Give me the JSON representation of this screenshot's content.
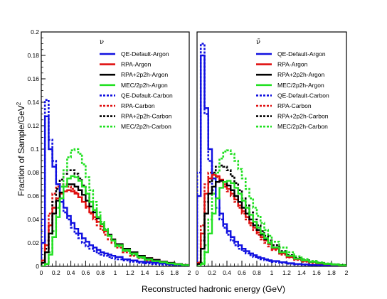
{
  "chart_data": [
    {
      "type": "line",
      "panel_label": "ν",
      "xlabel": "Reconstructed hadronic energy  (GeV)",
      "ylabel": "Fraction of Sample/GeV",
      "ylabel_sup": "2",
      "xlim": [
        0,
        2
      ],
      "ylim": [
        0,
        0.2
      ],
      "x_ticks": [
        "0",
        "0.2",
        "0.4",
        "0.6",
        "0.8",
        "1",
        "1.2",
        "1.4",
        "1.6",
        "1.8",
        "2"
      ],
      "y_ticks": [
        "0",
        "0.02",
        "0.04",
        "0.06",
        "0.08",
        "0.1",
        "0.12",
        "0.14",
        "0.16",
        "0.18",
        "0.2"
      ],
      "bin_edges": [
        0,
        0.05,
        0.1,
        0.15,
        0.2,
        0.25,
        0.3,
        0.35,
        0.4,
        0.45,
        0.5,
        0.55,
        0.6,
        0.65,
        0.7,
        0.75,
        0.8,
        0.85,
        0.9,
        0.95,
        1.0,
        1.1,
        1.2,
        1.3,
        1.4,
        1.5,
        1.6,
        1.7,
        1.8,
        1.9,
        2.0
      ],
      "series": [
        {
          "name": "QE-Default-Argon",
          "color": "#1010e0",
          "style": "solid",
          "values": [
            0.02,
            0.128,
            0.1,
            0.085,
            0.07,
            0.058,
            0.05,
            0.043,
            0.037,
            0.032,
            0.028,
            0.024,
            0.021,
            0.018,
            0.016,
            0.014,
            0.012,
            0.011,
            0.01,
            0.009,
            0.008,
            0.006,
            0.005,
            0.004,
            0.0035,
            0.003,
            0.0025,
            0.002,
            0.0015,
            0.001
          ]
        },
        {
          "name": "RPA-Argon",
          "color": "#e01010",
          "style": "solid",
          "values": [
            0.005,
            0.018,
            0.035,
            0.05,
            0.058,
            0.062,
            0.064,
            0.065,
            0.064,
            0.062,
            0.059,
            0.055,
            0.051,
            0.046,
            0.042,
            0.038,
            0.034,
            0.03,
            0.026,
            0.023,
            0.019,
            0.015,
            0.012,
            0.009,
            0.007,
            0.0055,
            0.004,
            0.003,
            0.002,
            0.0012
          ]
        },
        {
          "name": "RPA+2p2h-Argon",
          "color": "#000000",
          "style": "solid",
          "values": [
            0.003,
            0.012,
            0.028,
            0.045,
            0.056,
            0.063,
            0.068,
            0.07,
            0.07,
            0.068,
            0.065,
            0.061,
            0.056,
            0.051,
            0.046,
            0.041,
            0.036,
            0.031,
            0.027,
            0.023,
            0.019,
            0.015,
            0.012,
            0.009,
            0.007,
            0.0055,
            0.004,
            0.003,
            0.002,
            0.0012
          ]
        },
        {
          "name": "MEC/2p2h-Argon",
          "color": "#22e022",
          "style": "solid",
          "values": [
            0.0,
            0.002,
            0.01,
            0.025,
            0.042,
            0.058,
            0.068,
            0.075,
            0.077,
            0.076,
            0.073,
            0.068,
            0.062,
            0.055,
            0.048,
            0.042,
            0.036,
            0.031,
            0.026,
            0.022,
            0.018,
            0.014,
            0.011,
            0.008,
            0.006,
            0.0045,
            0.0035,
            0.0025,
            0.0018,
            0.001
          ]
        },
        {
          "name": "QE-Default-Carbon",
          "color": "#1010e0",
          "style": "dashed",
          "values": [
            0.04,
            0.142,
            0.108,
            0.09,
            0.07,
            0.055,
            0.046,
            0.04,
            0.033,
            0.028,
            0.024,
            0.02,
            0.017,
            0.015,
            0.013,
            0.011,
            0.01,
            0.009,
            0.008,
            0.007,
            0.006,
            0.005,
            0.004,
            0.003,
            0.0025,
            0.002,
            0.0015,
            0.0012,
            0.001,
            0.0008
          ]
        },
        {
          "name": "RPA-Carbon",
          "color": "#e01010",
          "style": "dashed",
          "values": [
            0.005,
            0.022,
            0.045,
            0.062,
            0.068,
            0.07,
            0.07,
            0.068,
            0.066,
            0.063,
            0.059,
            0.055,
            0.05,
            0.045,
            0.04,
            0.035,
            0.031,
            0.027,
            0.023,
            0.02,
            0.016,
            0.012,
            0.009,
            0.007,
            0.005,
            0.004,
            0.003,
            0.002,
            0.0015,
            0.001
          ]
        },
        {
          "name": "RPA+2p2h-Carbon",
          "color": "#000000",
          "style": "dashed",
          "values": [
            0.003,
            0.015,
            0.035,
            0.055,
            0.066,
            0.074,
            0.079,
            0.082,
            0.082,
            0.079,
            0.075,
            0.069,
            0.062,
            0.055,
            0.048,
            0.042,
            0.036,
            0.031,
            0.026,
            0.022,
            0.018,
            0.014,
            0.01,
            0.008,
            0.006,
            0.0045,
            0.0035,
            0.0025,
            0.0018,
            0.001
          ]
        },
        {
          "name": "MEC/2p2h-Carbon",
          "color": "#22e022",
          "style": "dashed",
          "values": [
            0.0,
            0.002,
            0.012,
            0.03,
            0.05,
            0.068,
            0.082,
            0.093,
            0.099,
            0.1,
            0.096,
            0.087,
            0.076,
            0.065,
            0.055,
            0.046,
            0.038,
            0.032,
            0.026,
            0.022,
            0.017,
            0.013,
            0.01,
            0.007,
            0.0055,
            0.004,
            0.003,
            0.002,
            0.0015,
            0.001
          ]
        }
      ]
    },
    {
      "type": "line",
      "panel_label": "ν̄",
      "xlim": [
        0,
        2
      ],
      "ylim": [
        0,
        0.2
      ],
      "x_ticks": [
        "0",
        "0.2",
        "0.4",
        "0.6",
        "0.8",
        "1",
        "1.2",
        "1.4",
        "1.6",
        "1.8",
        "2"
      ],
      "bin_edges": [
        0,
        0.05,
        0.1,
        0.15,
        0.2,
        0.25,
        0.3,
        0.35,
        0.4,
        0.45,
        0.5,
        0.55,
        0.6,
        0.65,
        0.7,
        0.75,
        0.8,
        0.85,
        0.9,
        0.95,
        1.0,
        1.1,
        1.2,
        1.3,
        1.4,
        1.5,
        1.6,
        1.7,
        1.8,
        1.9,
        2.0
      ],
      "series": [
        {
          "name": "QE-Default-Argon",
          "color": "#1010e0",
          "style": "solid",
          "values": [
            0.06,
            0.18,
            0.135,
            0.1,
            0.075,
            0.058,
            0.045,
            0.036,
            0.03,
            0.025,
            0.021,
            0.018,
            0.015,
            0.013,
            0.011,
            0.0095,
            0.008,
            0.007,
            0.006,
            0.0052,
            0.0045,
            0.0035,
            0.0027,
            0.002,
            0.0016,
            0.0012,
            0.001,
            0.0008,
            0.0006,
            0.0005
          ]
        },
        {
          "name": "RPA-Argon",
          "color": "#e01010",
          "style": "solid",
          "values": [
            0.003,
            0.028,
            0.062,
            0.075,
            0.078,
            0.077,
            0.074,
            0.07,
            0.066,
            0.062,
            0.057,
            0.052,
            0.047,
            0.042,
            0.037,
            0.033,
            0.029,
            0.025,
            0.022,
            0.019,
            0.015,
            0.011,
            0.008,
            0.006,
            0.0045,
            0.0035,
            0.0025,
            0.0018,
            0.0012,
            0.0008
          ]
        },
        {
          "name": "RPA+2p2h-Argon",
          "color": "#000000",
          "style": "solid",
          "values": [
            0.002,
            0.015,
            0.045,
            0.062,
            0.068,
            0.072,
            0.073,
            0.072,
            0.069,
            0.065,
            0.06,
            0.055,
            0.05,
            0.045,
            0.04,
            0.035,
            0.031,
            0.027,
            0.023,
            0.02,
            0.016,
            0.012,
            0.009,
            0.0065,
            0.005,
            0.0038,
            0.0028,
            0.002,
            0.0014,
            0.0009
          ]
        },
        {
          "name": "MEC/2p2h-Argon",
          "color": "#22e022",
          "style": "solid",
          "values": [
            0.0,
            0.002,
            0.012,
            0.028,
            0.045,
            0.058,
            0.067,
            0.072,
            0.073,
            0.071,
            0.067,
            0.062,
            0.056,
            0.05,
            0.044,
            0.038,
            0.033,
            0.028,
            0.024,
            0.02,
            0.016,
            0.012,
            0.009,
            0.0065,
            0.005,
            0.0038,
            0.0028,
            0.002,
            0.0014,
            0.0009
          ]
        },
        {
          "name": "QE-Default-Carbon",
          "color": "#1010e0",
          "style": "dashed",
          "values": [
            0.08,
            0.19,
            0.13,
            0.09,
            0.065,
            0.05,
            0.04,
            0.033,
            0.027,
            0.022,
            0.018,
            0.015,
            0.013,
            0.011,
            0.0095,
            0.008,
            0.007,
            0.006,
            0.0052,
            0.0045,
            0.0038,
            0.003,
            0.0023,
            0.0017,
            0.0013,
            0.001,
            0.0008,
            0.0006,
            0.0005,
            0.0004
          ]
        },
        {
          "name": "RPA-Carbon",
          "color": "#e01010",
          "style": "dashed",
          "values": [
            0.004,
            0.035,
            0.07,
            0.08,
            0.079,
            0.076,
            0.072,
            0.068,
            0.064,
            0.06,
            0.055,
            0.05,
            0.045,
            0.04,
            0.035,
            0.031,
            0.027,
            0.023,
            0.02,
            0.017,
            0.014,
            0.01,
            0.0075,
            0.0055,
            0.004,
            0.003,
            0.0022,
            0.0016,
            0.0011,
            0.0007
          ]
        },
        {
          "name": "RPA+2p2h-Carbon",
          "color": "#000000",
          "style": "dashed",
          "values": [
            0.003,
            0.022,
            0.055,
            0.072,
            0.08,
            0.085,
            0.086,
            0.085,
            0.082,
            0.077,
            0.071,
            0.065,
            0.058,
            0.052,
            0.046,
            0.04,
            0.035,
            0.03,
            0.026,
            0.022,
            0.018,
            0.013,
            0.0095,
            0.007,
            0.0052,
            0.0039,
            0.0029,
            0.0021,
            0.0015,
            0.001
          ]
        },
        {
          "name": "MEC/2p2h-Carbon",
          "color": "#22e022",
          "style": "dashed",
          "values": [
            0.0,
            0.003,
            0.018,
            0.04,
            0.062,
            0.08,
            0.092,
            0.098,
            0.099,
            0.096,
            0.09,
            0.083,
            0.075,
            0.066,
            0.058,
            0.05,
            0.043,
            0.037,
            0.031,
            0.026,
            0.021,
            0.016,
            0.012,
            0.0085,
            0.0062,
            0.0046,
            0.0034,
            0.0025,
            0.0018,
            0.0012
          ]
        }
      ]
    }
  ]
}
